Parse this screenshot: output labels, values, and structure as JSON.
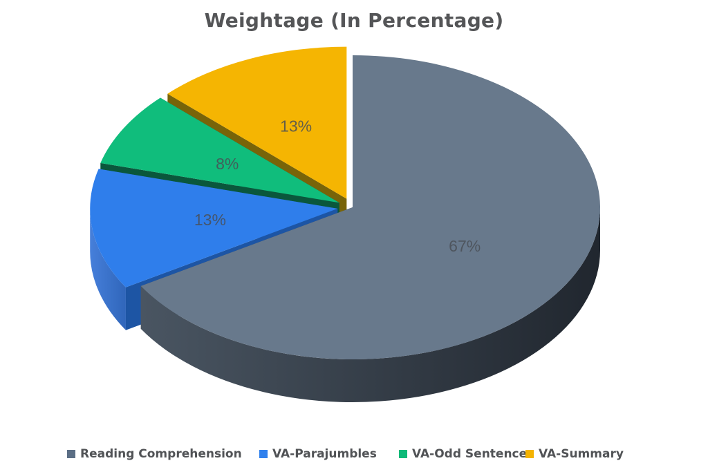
{
  "page": {
    "background_color": "#ffffff"
  },
  "chart_data": {
    "type": "pie",
    "style": "3d-exploded",
    "title": "Weightage (In Percentage)",
    "title_color": "#545557",
    "value_label_color": "#4A4F56",
    "start_angle_deg": 0,
    "direction": "clockwise",
    "slices": [
      {
        "label": "Reading Comprehension",
        "value": 67,
        "display": "67%",
        "color": "#68798C",
        "side_color": "#3C4754",
        "exploded": false
      },
      {
        "label": "VA-Parajumbles",
        "value": 13,
        "display": "13%",
        "color": "#2F7EEB",
        "side_color": "#1D55A4",
        "exploded": true
      },
      {
        "label": "VA-Odd Sentence",
        "value": 8,
        "display": "8%",
        "color": "#10BD7C",
        "side_color": "#0A573C",
        "exploded": true
      },
      {
        "label": "VA-Summary",
        "value": 13,
        "display": "13%",
        "color": "#F5B502",
        "side_color": "#786409",
        "exploded": true
      }
    ],
    "legend": {
      "position": "bottom",
      "text_color": "#515356",
      "swatch_colors": [
        "#5B6E85",
        "#2F80ED",
        "#0DB978",
        "#F4B302"
      ]
    }
  }
}
